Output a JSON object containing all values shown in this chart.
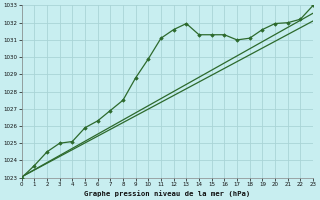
{
  "bg_color": "#c8eef0",
  "grid_color": "#aad4d6",
  "line_color": "#2d6a2d",
  "marker_color": "#2d6a2d",
  "title": "Graphe pression niveau de la mer (hPa)",
  "xlim": [
    0,
    23
  ],
  "ylim": [
    1023,
    1033
  ],
  "yticks": [
    1023,
    1024,
    1025,
    1026,
    1027,
    1028,
    1029,
    1030,
    1031,
    1032,
    1033
  ],
  "xticks": [
    0,
    1,
    2,
    3,
    4,
    5,
    6,
    7,
    8,
    9,
    10,
    11,
    12,
    13,
    14,
    15,
    16,
    17,
    18,
    19,
    20,
    21,
    22,
    23
  ],
  "series_main": {
    "x": [
      0,
      1,
      2,
      3,
      4,
      5,
      6,
      7,
      8,
      9,
      10,
      11,
      12,
      13,
      14,
      15,
      16,
      17,
      18,
      19,
      20,
      21,
      22,
      23
    ],
    "y": [
      1023.0,
      1023.7,
      1024.5,
      1025.0,
      1025.1,
      1025.9,
      1026.3,
      1026.9,
      1027.5,
      1028.8,
      1029.9,
      1031.1,
      1031.6,
      1031.95,
      1031.3,
      1031.3,
      1031.3,
      1031.0,
      1031.1,
      1031.6,
      1031.95,
      1032.0,
      1032.2,
      1033.0
    ]
  },
  "series_line1": {
    "x": [
      0,
      23
    ],
    "y": [
      1023.05,
      1032.55
    ]
  },
  "series_line2": {
    "x": [
      0,
      23
    ],
    "y": [
      1023.05,
      1032.1
    ]
  }
}
